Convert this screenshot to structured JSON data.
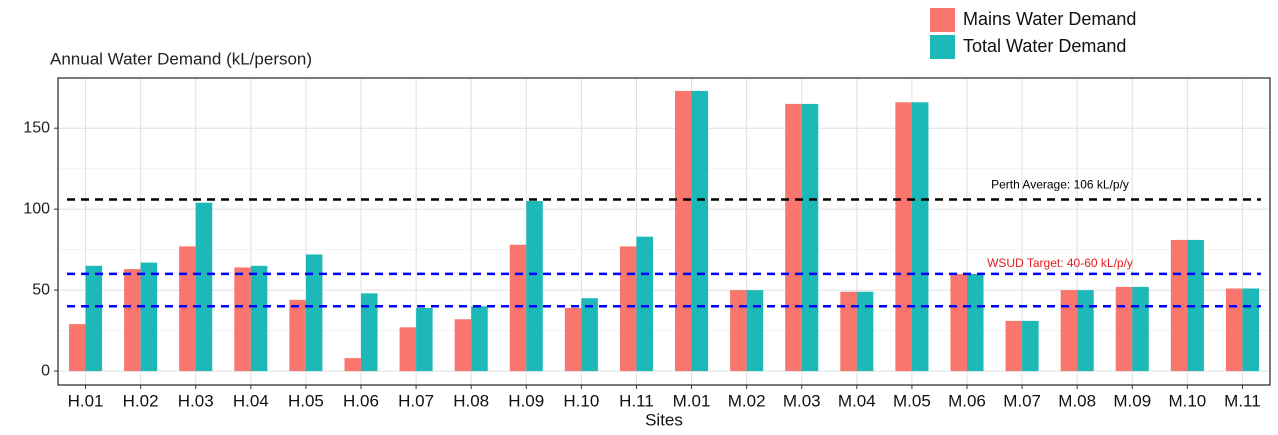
{
  "chart_data": {
    "type": "bar",
    "title": "Annual Water Demand (kL/person)",
    "x_label": "Sites",
    "categories": [
      "H.01",
      "H.02",
      "H.03",
      "H.04",
      "H.05",
      "H.06",
      "H.07",
      "H.08",
      "H.09",
      "H.10",
      "H.11",
      "M.01",
      "M.02",
      "M.03",
      "M.04",
      "M.05",
      "M.06",
      "M.07",
      "M.08",
      "M.09",
      "M.10",
      "M.11"
    ],
    "series": [
      {
        "name": "Mains Water Demand",
        "color": "#f8766d",
        "values": [
          29,
          63,
          77,
          64,
          44,
          8,
          27,
          32,
          78,
          39,
          77,
          173,
          50,
          165,
          49,
          166,
          60,
          31,
          50,
          52,
          81,
          51
        ]
      },
      {
        "name": "Total Water Demand",
        "color": "#1db8b8",
        "values": [
          65,
          67,
          104,
          65,
          72,
          48,
          39,
          40,
          105,
          45,
          83,
          173,
          50,
          165,
          49,
          166,
          60,
          31,
          50,
          52,
          81,
          51
        ]
      }
    ],
    "ylim": [
      -8.6,
      181
    ],
    "yticks": [
      0,
      50,
      100,
      150
    ],
    "grid": true,
    "legend": "top-right",
    "reference_lines": [
      {
        "value": 106,
        "color": "#000000"
      },
      {
        "value": 60,
        "color": "#0000ff"
      },
      {
        "value": 40,
        "color": "#0000ff"
      }
    ],
    "annotations": [
      {
        "text": "Perth Average: 106 kL/p/y",
        "color": "#000000"
      },
      {
        "text": "WSUD Target: 40-60 kL/p/y",
        "color": "#e41a1c"
      }
    ]
  }
}
